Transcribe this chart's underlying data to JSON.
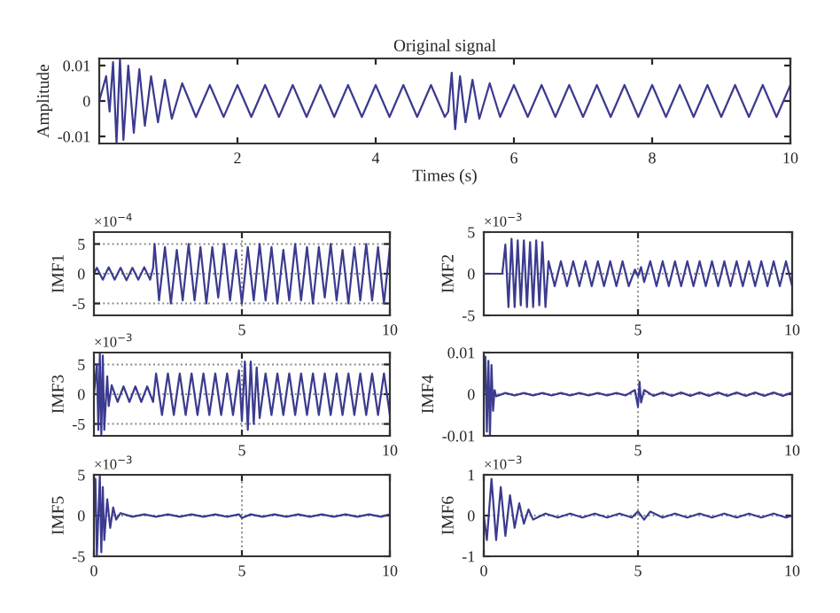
{
  "chart_data": [
    {
      "type": "line",
      "title": "Original signal",
      "xlabel": "Times (s)",
      "ylabel": "Amplitude",
      "color": "#3b3b8f",
      "x": [
        0,
        0.1,
        0.15,
        0.2,
        0.25,
        0.3,
        0.35,
        0.42,
        0.5,
        0.58,
        0.66,
        0.75,
        0.85,
        0.95,
        1.05,
        1.2,
        1.4,
        1.6,
        1.8,
        2.0,
        2.2,
        2.4,
        2.6,
        2.8,
        3.0,
        3.2,
        3.4,
        3.6,
        3.8,
        4.0,
        4.2,
        4.4,
        4.6,
        4.8,
        5.0,
        5.05,
        5.1,
        5.15,
        5.22,
        5.3,
        5.4,
        5.5,
        5.65,
        5.8,
        6.0,
        6.2,
        6.4,
        6.6,
        6.8,
        7.0,
        7.2,
        7.4,
        7.6,
        7.8,
        8.0,
        8.2,
        8.4,
        8.6,
        8.8,
        9.0,
        9.2,
        9.4,
        9.6,
        9.8,
        10.0
      ],
      "values": [
        0,
        0.007,
        -0.003,
        0.011,
        -0.012,
        0.012,
        -0.011,
        0.01,
        -0.009,
        0.009,
        -0.007,
        0.007,
        -0.006,
        0.006,
        -0.005,
        0.005,
        -0.0045,
        0.0045,
        -0.0045,
        0.0045,
        -0.0045,
        0.0045,
        -0.0045,
        0.0045,
        -0.0045,
        0.0045,
        -0.0045,
        0.0045,
        -0.0045,
        0.0045,
        -0.0045,
        0.0045,
        -0.0045,
        0.0045,
        -0.0045,
        -0.003,
        0.008,
        -0.008,
        0.007,
        -0.006,
        0.006,
        -0.005,
        0.005,
        -0.0045,
        0.0045,
        -0.0045,
        0.0045,
        -0.0045,
        0.0045,
        -0.0045,
        0.0045,
        -0.0045,
        0.0045,
        -0.0045,
        0.0045,
        -0.0045,
        0.0045,
        -0.0045,
        0.0045,
        -0.0045,
        0.0045,
        -0.0045,
        0.0045,
        -0.0045,
        0.0045
      ],
      "xlim": [
        0,
        10
      ],
      "xticks": [
        2,
        4,
        6,
        8,
        10
      ],
      "ylim": [
        -0.012,
        0.012
      ],
      "yticks": [
        -0.01,
        0,
        0.01
      ]
    },
    {
      "type": "line",
      "ylabel": "IMF1",
      "color": "#3b3b8f",
      "annotations": [
        "×10$^{−4}$"
      ],
      "grid": true,
      "x": [
        0,
        0.1,
        0.3,
        0.5,
        0.7,
        0.9,
        1.1,
        1.3,
        1.5,
        1.7,
        1.9,
        2.0,
        2.05,
        2.2,
        2.4,
        2.6,
        2.8,
        3.0,
        3.2,
        3.4,
        3.6,
        3.8,
        4.0,
        4.2,
        4.4,
        4.6,
        4.8,
        5.0,
        5.2,
        5.4,
        5.6,
        5.8,
        6.0,
        6.2,
        6.4,
        6.6,
        6.8,
        7.0,
        7.2,
        7.4,
        7.6,
        7.8,
        8.0,
        8.2,
        8.4,
        8.6,
        8.8,
        9.0,
        9.2,
        9.4,
        9.6,
        9.8,
        10.0
      ],
      "values": [
        0,
        1,
        -1,
        1.1,
        -1,
        1,
        -1.1,
        1,
        -1,
        1.1,
        -1,
        1,
        5,
        -4.5,
        4.5,
        -5,
        4,
        -4.5,
        5,
        -4.5,
        4.5,
        -5,
        4.5,
        -4,
        5,
        -4.5,
        4,
        -5,
        4.5,
        -4.5,
        5,
        -4.5,
        4.5,
        -5,
        4,
        -4.5,
        5,
        -4.5,
        4.5,
        -5,
        4.5,
        -4,
        5,
        -4.5,
        4,
        -5,
        4.5,
        -4.5,
        5,
        -4.5,
        4.5,
        -5,
        4.5
      ],
      "xlim": [
        0,
        10
      ],
      "xticks": [
        5,
        10
      ],
      "ylim": [
        -7,
        7
      ],
      "yticks": [
        -5,
        0,
        5
      ]
    },
    {
      "type": "line",
      "ylabel": "IMF2",
      "color": "#3b3b8f",
      "annotations": [
        "×10$^{−3}$"
      ],
      "grid": true,
      "x": [
        0,
        0.6,
        0.7,
        0.8,
        0.9,
        1.0,
        1.1,
        1.2,
        1.3,
        1.4,
        1.5,
        1.6,
        1.7,
        1.8,
        1.9,
        2.0,
        2.1,
        2.3,
        2.5,
        2.7,
        2.9,
        3.1,
        3.3,
        3.5,
        3.7,
        3.9,
        4.1,
        4.3,
        4.5,
        4.7,
        4.9,
        5.0,
        5.1,
        5.2,
        5.4,
        5.6,
        5.8,
        6.0,
        6.2,
        6.4,
        6.6,
        6.8,
        7.0,
        7.2,
        7.4,
        7.6,
        7.8,
        8.0,
        8.2,
        8.4,
        8.6,
        8.8,
        9.0,
        9.2,
        9.4,
        9.6,
        9.8,
        10.0
      ],
      "values": [
        0,
        0,
        3.5,
        -4,
        4.2,
        -4,
        4,
        -3.8,
        4,
        -4,
        3.8,
        -4,
        4,
        -3.8,
        3.8,
        -4,
        1.5,
        -1.5,
        1.5,
        -1.5,
        1.5,
        -1.5,
        1.5,
        -1.5,
        1.5,
        -1.5,
        1.5,
        -1.5,
        1.5,
        -1.5,
        0.5,
        -0.3,
        0.8,
        -1,
        1.5,
        -1.5,
        1.5,
        -1.5,
        1.5,
        -1.5,
        1.5,
        -1.5,
        1.5,
        -1.5,
        1.5,
        -1.5,
        1.5,
        -1.5,
        1.5,
        -1.5,
        1.5,
        -1.5,
        1.5,
        -1.5,
        1.5,
        -1.5,
        1.5,
        -1.5
      ],
      "xlim": [
        0,
        10
      ],
      "xticks": [
        5,
        10
      ],
      "ylim": [
        -5,
        5
      ],
      "yticks": [
        -5,
        0,
        5
      ]
    },
    {
      "type": "line",
      "ylabel": "IMF3",
      "color": "#3b3b8f",
      "annotations": [
        "×10$^{−3}$"
      ],
      "grid": true,
      "x": [
        0,
        0.1,
        0.15,
        0.2,
        0.25,
        0.3,
        0.35,
        0.45,
        0.5,
        0.6,
        0.8,
        1.0,
        1.2,
        1.4,
        1.6,
        1.8,
        2.0,
        2.1,
        2.3,
        2.5,
        2.7,
        2.9,
        3.1,
        3.3,
        3.5,
        3.7,
        3.9,
        4.1,
        4.3,
        4.5,
        4.7,
        4.9,
        5.0,
        5.1,
        5.2,
        5.3,
        5.4,
        5.5,
        5.6,
        5.8,
        6.0,
        6.2,
        6.4,
        6.6,
        6.8,
        7.0,
        7.2,
        7.4,
        7.6,
        7.8,
        8.0,
        8.2,
        8.4,
        8.6,
        8.8,
        9.0,
        9.2,
        9.4,
        9.6,
        9.8,
        10.0
      ],
      "values": [
        0,
        5,
        -6,
        7,
        -7,
        6.5,
        -6,
        3,
        -2,
        1.5,
        -1.3,
        1.3,
        -1.3,
        1.3,
        -1.3,
        1.3,
        -1.3,
        3.5,
        -3.5,
        3.5,
        -3.5,
        3.5,
        -3.5,
        3.5,
        -3.5,
        3.5,
        -3.5,
        3.5,
        -3.5,
        3.5,
        -3.5,
        4,
        -4.5,
        5.5,
        -6,
        5.5,
        -5,
        4.5,
        -4,
        3.5,
        -3.5,
        3.5,
        -3.5,
        3.5,
        -3.5,
        3.5,
        -3.5,
        3.5,
        -3.5,
        3.5,
        -3.5,
        3.5,
        -3.5,
        3.5,
        -3.5,
        3.5,
        -3.5,
        3.5,
        -3.5,
        3.5,
        -3.5
      ],
      "xlim": [
        0,
        10
      ],
      "xticks": [
        5,
        10
      ],
      "ylim": [
        -7,
        7
      ],
      "yticks": [
        -5,
        0,
        5
      ]
    },
    {
      "type": "line",
      "ylabel": "IMF4",
      "color": "#3b3b8f",
      "grid": true,
      "x": [
        0,
        0.05,
        0.1,
        0.15,
        0.2,
        0.25,
        0.3,
        0.35,
        0.4,
        0.7,
        1.0,
        1.3,
        1.6,
        1.9,
        2.2,
        2.5,
        2.8,
        3.1,
        3.4,
        3.7,
        4.0,
        4.3,
        4.6,
        4.9,
        5.0,
        5.05,
        5.1,
        5.2,
        5.5,
        5.8,
        6.1,
        6.4,
        6.7,
        7.0,
        7.3,
        7.6,
        7.9,
        8.2,
        8.5,
        8.8,
        9.1,
        9.4,
        9.7,
        10.0
      ],
      "values": [
        0,
        0.009,
        -0.009,
        0.008,
        -0.01,
        0.007,
        -0.004,
        0.001,
        -0.0005,
        0.0003,
        -0.0003,
        0.0003,
        -0.0003,
        0.0003,
        -0.0003,
        0.0003,
        -0.0003,
        0.0003,
        -0.0003,
        0.0003,
        -0.0003,
        0.0003,
        -0.0003,
        0.001,
        -0.003,
        0.003,
        -0.002,
        0.001,
        -0.0004,
        0.0004,
        -0.0004,
        0.0004,
        -0.0004,
        0.0004,
        -0.0004,
        0.0004,
        -0.0004,
        0.0004,
        -0.0004,
        0.0004,
        -0.0004,
        0.0004,
        -0.0004,
        0.0004
      ],
      "xlim": [
        0,
        10
      ],
      "xticks": [
        5,
        10
      ],
      "ylim": [
        -0.01,
        0.01
      ],
      "yticks": [
        -0.01,
        0,
        0.01
      ]
    },
    {
      "type": "line",
      "ylabel": "IMF5",
      "color": "#3b3b8f",
      "annotations": [
        "×10$^{−3}$"
      ],
      "grid": true,
      "x": [
        0,
        0.05,
        0.1,
        0.2,
        0.25,
        0.3,
        0.35,
        0.45,
        0.55,
        0.65,
        0.75,
        0.9,
        1.3,
        1.7,
        2.1,
        2.5,
        2.9,
        3.3,
        3.7,
        4.1,
        4.5,
        4.9,
        5.0,
        5.3,
        5.7,
        6.1,
        6.5,
        6.9,
        7.3,
        7.7,
        8.1,
        8.5,
        8.9,
        9.3,
        9.7,
        10.0
      ],
      "values": [
        0,
        4.5,
        -5,
        5,
        -4.5,
        3.5,
        -3,
        2,
        -1.5,
        1,
        -0.5,
        0.3,
        -0.15,
        0.15,
        -0.15,
        0.15,
        -0.15,
        0.15,
        -0.15,
        0.15,
        -0.15,
        0.15,
        -0.3,
        0.15,
        -0.15,
        0.15,
        -0.15,
        0.15,
        -0.15,
        0.15,
        -0.15,
        0.15,
        -0.15,
        0.15,
        -0.15,
        0.15
      ],
      "xlim": [
        0,
        10
      ],
      "xticks": [
        0,
        5,
        10
      ],
      "ylim": [
        -5,
        5
      ],
      "yticks": [
        -5,
        0,
        5
      ]
    },
    {
      "type": "line",
      "ylabel": "IMF6",
      "color": "#3b3b8f",
      "annotations": [
        "×10$^{−3}$"
      ],
      "grid": true,
      "x": [
        0,
        0.1,
        0.25,
        0.4,
        0.55,
        0.7,
        0.85,
        1.0,
        1.15,
        1.3,
        1.45,
        1.6,
        2.0,
        2.4,
        2.8,
        3.2,
        3.6,
        4.0,
        4.4,
        4.8,
        5.0,
        5.2,
        5.4,
        5.8,
        6.2,
        6.6,
        7.0,
        7.4,
        7.8,
        8.2,
        8.6,
        9.0,
        9.4,
        9.8,
        10.0
      ],
      "values": [
        0,
        -0.6,
        0.9,
        -0.6,
        0.7,
        -0.5,
        0.5,
        -0.3,
        0.3,
        -0.2,
        0.15,
        -0.1,
        0.05,
        -0.05,
        0.05,
        -0.05,
        0.05,
        -0.05,
        0.05,
        -0.05,
        0.1,
        -0.1,
        0.1,
        -0.05,
        0.05,
        -0.05,
        0.05,
        -0.05,
        0.05,
        -0.05,
        0.05,
        -0.05,
        0.05,
        -0.05,
        0
      ],
      "xlim": [
        0,
        10
      ],
      "xticks": [
        0,
        5,
        10
      ],
      "ylim": [
        -1,
        1
      ],
      "yticks": [
        -1,
        0,
        1
      ]
    }
  ]
}
